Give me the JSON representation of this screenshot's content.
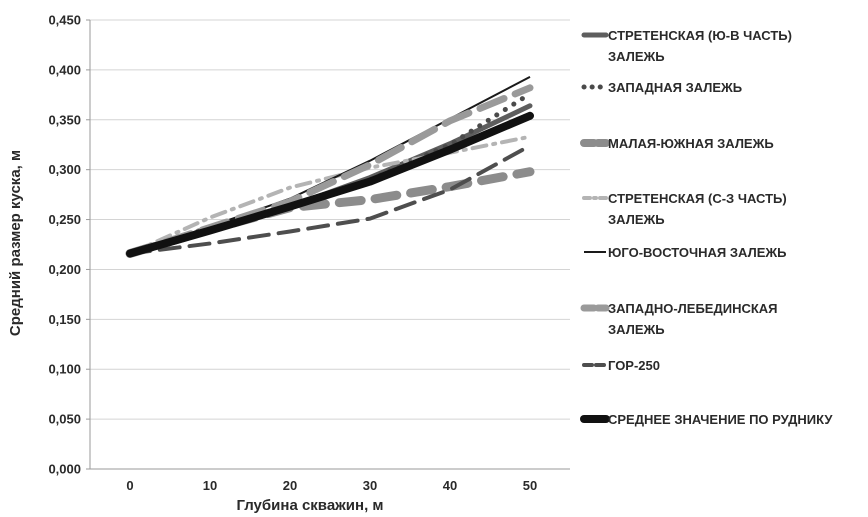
{
  "chart_data": {
    "type": "line",
    "xlabel": "Глубина скважин, м",
    "ylabel": "Средний размер куска, м",
    "xlim": [
      -5,
      55
    ],
    "ylim": [
      0,
      0.45
    ],
    "x_ticks": [
      "0",
      "10",
      "20",
      "30",
      "40",
      "50"
    ],
    "y_ticks": [
      "0,000",
      "0,050",
      "0,100",
      "0,150",
      "0,200",
      "0,250",
      "0,300",
      "0,350",
      "0,400",
      "0,450"
    ],
    "grid": "horizontal",
    "legend_position": "right",
    "series": [
      {
        "name": "СТРЕТЕНСКАЯ (Ю-В ЧАСТЬ) ЗАЛЕЖЬ",
        "legend_lines": [
          "СТРЕТЕНСКАЯ (Ю-В ЧАСТЬ)",
          "ЗАЛЕЖЬ"
        ],
        "color": "#5e5e5e",
        "x": [
          0,
          10,
          20,
          30,
          40,
          50
        ],
        "y": [
          0.216,
          0.238,
          0.263,
          0.292,
          0.326,
          0.364
        ]
      },
      {
        "name": "ЗАПАДНАЯ ЗАЛЕЖЬ",
        "legend_lines": [
          "ЗАПАДНАЯ ЗАЛЕЖЬ"
        ],
        "color": "#4a4a4a",
        "x": [
          0,
          10,
          20,
          30,
          40,
          50
        ],
        "y": [
          0.216,
          0.238,
          0.262,
          0.29,
          0.325,
          0.376
        ]
      },
      {
        "name": "МАЛАЯ-ЮЖНАЯ ЗАЛЕЖЬ",
        "legend_lines": [
          "МАЛАЯ-ЮЖНАЯ ЗАЛЕЖЬ"
        ],
        "color": "#8c8c8c",
        "x": [
          0,
          10,
          20,
          30,
          40,
          50
        ],
        "y": [
          0.216,
          0.24,
          0.262,
          0.27,
          0.283,
          0.298
        ]
      },
      {
        "name": "СТРЕТЕНСКАЯ (С-З ЧАСТЬ) ЗАЛЕЖЬ",
        "legend_lines": [
          "СТРЕТЕНСКАЯ (С-З ЧАСТЬ)",
          "ЗАЛЕЖЬ"
        ],
        "color": "#b4b4b4",
        "x": [
          0,
          10,
          20,
          30,
          40,
          50
        ],
        "y": [
          0.216,
          0.252,
          0.282,
          0.302,
          0.317,
          0.333
        ]
      },
      {
        "name": "ЮГО-ВОСТОЧНАЯ ЗАЛЕЖЬ",
        "legend_lines": [
          "ЮГО-ВОСТОЧНАЯ ЗАЛЕЖЬ"
        ],
        "color": "#1a1a1a",
        "x": [
          0,
          10,
          20,
          30,
          40,
          50
        ],
        "y": [
          0.216,
          0.243,
          0.271,
          0.309,
          0.351,
          0.393
        ]
      },
      {
        "name": "ЗАПАДНО-ЛЕБЕДИНСКАЯ ЗАЛЕЖЬ",
        "legend_lines": [
          "ЗАПАДНО-ЛЕБЕДИНСКАЯ",
          "ЗАЛЕЖЬ"
        ],
        "color": "#9a9a9a",
        "x": [
          0,
          10,
          20,
          30,
          40,
          50
        ],
        "y": [
          0.216,
          0.242,
          0.268,
          0.305,
          0.349,
          0.382
        ]
      },
      {
        "name": "ГОР-250",
        "legend_lines": [
          "ГОР-250"
        ],
        "color": "#4e4e4e",
        "x": [
          0,
          10,
          20,
          30,
          40,
          50
        ],
        "y": [
          0.216,
          0.226,
          0.238,
          0.251,
          0.28,
          0.324
        ]
      },
      {
        "name": "СРЕДНЕЕ ЗНАЧЕНИЕ ПО РУДНИКУ",
        "legend_lines": [
          "СРЕДНЕЕ ЗНАЧЕНИЕ ПО РУДНИКУ"
        ],
        "color": "#111111",
        "x": [
          0,
          10,
          20,
          30,
          40,
          50
        ],
        "y": [
          0.216,
          0.239,
          0.263,
          0.288,
          0.32,
          0.354
        ]
      }
    ]
  }
}
